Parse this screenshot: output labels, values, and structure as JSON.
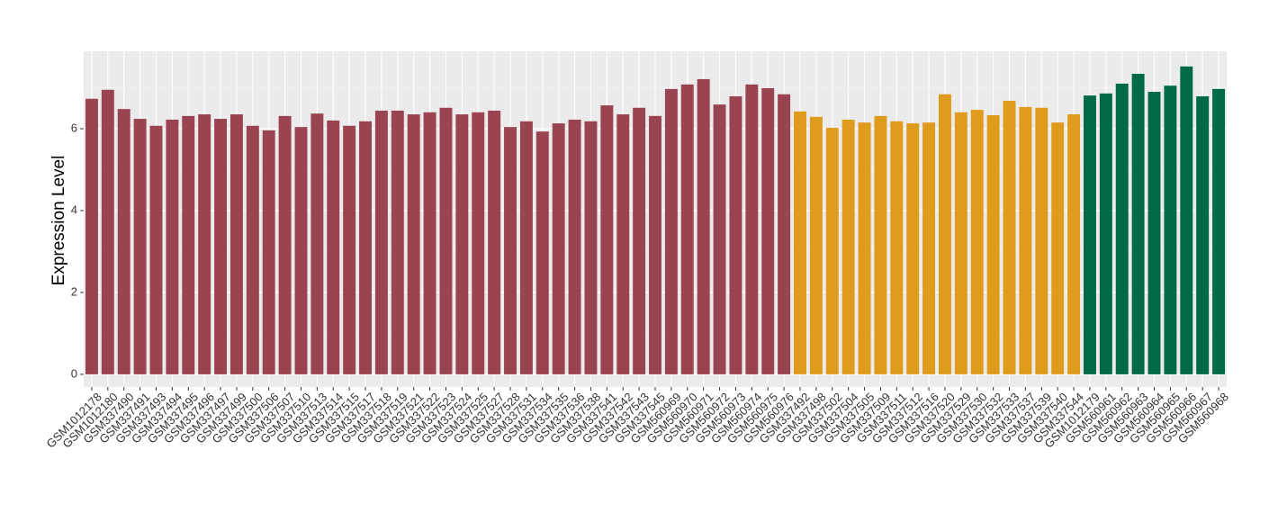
{
  "chart_data": {
    "type": "bar",
    "y_label": "Expression Level",
    "categories": [
      "GSM1012178",
      "GSM1012180",
      "GSM337490",
      "GSM337491",
      "GSM337493",
      "GSM337494",
      "GSM337495",
      "GSM337496",
      "GSM337497",
      "GSM337499",
      "GSM337500",
      "GSM337506",
      "GSM337507",
      "GSM337510",
      "GSM337513",
      "GSM337514",
      "GSM337515",
      "GSM337517",
      "GSM337518",
      "GSM337519",
      "GSM337521",
      "GSM337522",
      "GSM337523",
      "GSM337524",
      "GSM337525",
      "GSM337527",
      "GSM337528",
      "GSM337531",
      "GSM337534",
      "GSM337535",
      "GSM337536",
      "GSM337538",
      "GSM337541",
      "GSM337542",
      "GSM337543",
      "GSM337545",
      "GSM560969",
      "GSM560970",
      "GSM560971",
      "GSM560972",
      "GSM560973",
      "GSM560974",
      "GSM560975",
      "GSM560976",
      "GSM337492",
      "GSM337498",
      "GSM337502",
      "GSM337504",
      "GSM337505",
      "GSM337509",
      "GSM337511",
      "GSM337512",
      "GSM337516",
      "GSM337520",
      "GSM337529",
      "GSM337530",
      "GSM337532",
      "GSM337533",
      "GSM337537",
      "GSM337539",
      "GSM337540",
      "GSM337544",
      "GSM1012179",
      "GSM560961",
      "GSM560962",
      "GSM560963",
      "GSM560964",
      "GSM560965",
      "GSM560966",
      "GSM560967",
      "GSM560968"
    ],
    "values": [
      6.73,
      6.95,
      6.48,
      6.24,
      6.07,
      6.22,
      6.31,
      6.35,
      6.24,
      6.35,
      6.07,
      5.96,
      6.31,
      6.04,
      6.37,
      6.2,
      6.07,
      6.18,
      6.44,
      6.44,
      6.35,
      6.4,
      6.51,
      6.35,
      6.4,
      6.44,
      6.04,
      6.18,
      5.93,
      6.13,
      6.22,
      6.18,
      6.57,
      6.35,
      6.51,
      6.31,
      6.97,
      7.08,
      7.21,
      6.59,
      6.79,
      7.08,
      6.99,
      6.84,
      6.42,
      6.29,
      6.02,
      6.22,
      6.15,
      6.31,
      6.18,
      6.13,
      6.15,
      6.84,
      6.4,
      6.46,
      6.33,
      6.68,
      6.53,
      6.51,
      6.15,
      6.35,
      6.81,
      6.86,
      7.1,
      7.34,
      6.9,
      7.05,
      7.52,
      6.79,
      6.97
    ],
    "colors": [
      "#9b4451",
      "#9b4451",
      "#9b4451",
      "#9b4451",
      "#9b4451",
      "#9b4451",
      "#9b4451",
      "#9b4451",
      "#9b4451",
      "#9b4451",
      "#9b4451",
      "#9b4451",
      "#9b4451",
      "#9b4451",
      "#9b4451",
      "#9b4451",
      "#9b4451",
      "#9b4451",
      "#9b4451",
      "#9b4451",
      "#9b4451",
      "#9b4451",
      "#9b4451",
      "#9b4451",
      "#9b4451",
      "#9b4451",
      "#9b4451",
      "#9b4451",
      "#9b4451",
      "#9b4451",
      "#9b4451",
      "#9b4451",
      "#9b4451",
      "#9b4451",
      "#9b4451",
      "#9b4451",
      "#9b4451",
      "#9b4451",
      "#9b4451",
      "#9b4451",
      "#9b4451",
      "#9b4451",
      "#9b4451",
      "#9b4451",
      "#df9b1b",
      "#df9b1b",
      "#df9b1b",
      "#df9b1b",
      "#df9b1b",
      "#df9b1b",
      "#df9b1b",
      "#df9b1b",
      "#df9b1b",
      "#df9b1b",
      "#df9b1b",
      "#df9b1b",
      "#df9b1b",
      "#df9b1b",
      "#df9b1b",
      "#df9b1b",
      "#df9b1b",
      "#df9b1b",
      "#006a45",
      "#006a45",
      "#006a45",
      "#006a45",
      "#006a45",
      "#006a45",
      "#006a45",
      "#006a45",
      "#006a45"
    ],
    "ylim": [
      -0.31,
      7.89
    ],
    "yticks": [
      0,
      2,
      4,
      6
    ],
    "grid": true
  }
}
